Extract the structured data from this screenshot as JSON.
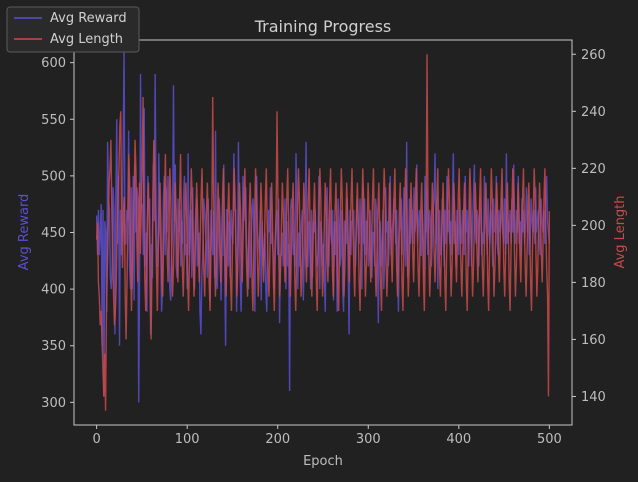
{
  "chart_data": {
    "type": "line",
    "title": "Training Progress",
    "xlabel": "Epoch",
    "x_ticks": [
      0,
      100,
      200,
      300,
      400,
      500
    ],
    "xlim": [
      -25,
      525
    ],
    "left_axis": {
      "label": "Avg Reward",
      "ticks": [
        300,
        350,
        400,
        450,
        500,
        550,
        600
      ],
      "ylim": [
        280,
        620
      ],
      "color": "#5a4fcf"
    },
    "right_axis": {
      "label": "Avg Length",
      "ticks": [
        140,
        160,
        180,
        200,
        220,
        240,
        260
      ],
      "ylim": [
        130,
        265
      ],
      "color": "#c94a4a"
    },
    "legend": {
      "placement": "top-left",
      "items": [
        {
          "label": "Avg Reward",
          "color": "#5a4fcf"
        },
        {
          "label": "Avg Length",
          "color": "#c94a4a"
        }
      ]
    },
    "grid": false,
    "series": [
      {
        "name": "Avg Reward",
        "axis": "left",
        "color": "#5a4fcf",
        "values": [
          465,
          430,
          470,
          430,
          450,
          475,
          350,
          470,
          305,
          460,
          450,
          380,
          530,
          480,
          470,
          410,
          400,
          420,
          490,
          470,
          360,
          480,
          550,
          440,
          500,
          350,
          470,
          430,
          450,
          530,
          612,
          440,
          440,
          470,
          460,
          540,
          420,
          400,
          490,
          400,
          500,
          390,
          510,
          450,
          490,
          480,
          300,
          420,
          590,
          470,
          475,
          430,
          560,
          420,
          450,
          380,
          500,
          470,
          480,
          360,
          440,
          410,
          510,
          460,
          590,
          470,
          420,
          420,
          520,
          460,
          440,
          380,
          400,
          480,
          500,
          430,
          490,
          450,
          500,
          470,
          400,
          390,
          430,
          450,
          580,
          460,
          510,
          420,
          410,
          480,
          450,
          470,
          420,
          460,
          440,
          480,
          500,
          430,
          440,
          400,
          520,
          430,
          460,
          470,
          410,
          490,
          430,
          400,
          460,
          480,
          420,
          430,
          450,
          380,
          360,
          410,
          430,
          480,
          470,
          450,
          440,
          410,
          480,
          440,
          390,
          470,
          450,
          430,
          470,
          410,
          540,
          420,
          400,
          450,
          480,
          460,
          390,
          430,
          430,
          510,
          420,
          350,
          470,
          470,
          420,
          460,
          410,
          470,
          450,
          440,
          520,
          470,
          470,
          380,
          420,
          530,
          460,
          410,
          380,
          430,
          500,
          460,
          480,
          490,
          440,
          420,
          400,
          460,
          410,
          440,
          470,
          480,
          450,
          380,
          470,
          500,
          450,
          440,
          430,
          470,
          390,
          460,
          420,
          430,
          450,
          400,
          380,
          440,
          470,
          450,
          490,
          440,
          450,
          430,
          400,
          440,
          460,
          470,
          430,
          480,
          370,
          430,
          430,
          450,
          420,
          440,
          480,
          400,
          460,
          420,
          440,
          310,
          470,
          480,
          470,
          430,
          440,
          420,
          520,
          470,
          400,
          450,
          420,
          440,
          460,
          470,
          390,
          430,
          460,
          530,
          420,
          420,
          460,
          440,
          400,
          470,
          410,
          460,
          450,
          470,
          430,
          420,
          430,
          500,
          400,
          460,
          450,
          420,
          440,
          410,
          380,
          460,
          490,
          440,
          420,
          470,
          450,
          440,
          470,
          390,
          460,
          430,
          460,
          380,
          480,
          450,
          420,
          430,
          470,
          400,
          380,
          460,
          460,
          440,
          480,
          420,
          360,
          470,
          430,
          460,
          460,
          470,
          430,
          420,
          450,
          480,
          460,
          440,
          480,
          450,
          400,
          490,
          440,
          480,
          430,
          460,
          460,
          420,
          430,
          470,
          440,
          410,
          450,
          450,
          420,
          480,
          470,
          430,
          370,
          450,
          460,
          420,
          440,
          470,
          400,
          430,
          490,
          450,
          460,
          420,
          440,
          500,
          430,
          450,
          460,
          480,
          470,
          440,
          470,
          420,
          380,
          450,
          460,
          480,
          430,
          460,
          490,
          450,
          420,
          530,
          410,
          430,
          480,
          440,
          460,
          470,
          440,
          490,
          450,
          460,
          510,
          440,
          460,
          470,
          430,
          430,
          470,
          440,
          410,
          500,
          450,
          490,
          430,
          450,
          470,
          460,
          420,
          440,
          470,
          480,
          520,
          440,
          480,
          400,
          450,
          470,
          430,
          440,
          480,
          460,
          420,
          470,
          440,
          500,
          450,
          470,
          440,
          460,
          430,
          480,
          520,
          440,
          460,
          420,
          470,
          450,
          430,
          480,
          450,
          440,
          470,
          460,
          430,
          500,
          450,
          470,
          440,
          420,
          480,
          450,
          420,
          460,
          480,
          510,
          450,
          440,
          470,
          460,
          420,
          480,
          470,
          430,
          450,
          440,
          500,
          470,
          460,
          430,
          480,
          450,
          440,
          470,
          460,
          420,
          480,
          450,
          460,
          500,
          440,
          430,
          470,
          450,
          460,
          480,
          450,
          440,
          480,
          430,
          520,
          440,
          460,
          450,
          470,
          440,
          480,
          450,
          510,
          460,
          440,
          470,
          450,
          500,
          440,
          460,
          430,
          480,
          450,
          470,
          440,
          460,
          490,
          450,
          470,
          430,
          440,
          480,
          460,
          450,
          470,
          440,
          490,
          450,
          460,
          470,
          440,
          430,
          480,
          460,
          450,
          470,
          440,
          480,
          500,
          460,
          450,
          440
        ],
        "note": ""
      },
      {
        "name": "Avg Length",
        "axis": "right",
        "color": "#c94a4a",
        "values": [
          195,
          201,
          180,
          175,
          165,
          170,
          160,
          150,
          140,
          155,
          135,
          170,
          185,
          200,
          215,
          220,
          230,
          205,
          190,
          175,
          165,
          170,
          180,
          200,
          210,
          220,
          235,
          240,
          200,
          185,
          205,
          210,
          175,
          160,
          180,
          200,
          225,
          215,
          190,
          170,
          185,
          200,
          210,
          230,
          220,
          195,
          180,
          200,
          215,
          190,
          205,
          220,
          245,
          200,
          180,
          170,
          190,
          205,
          215,
          200,
          175,
          160,
          185,
          210,
          230,
          220,
          200,
          185,
          170,
          190,
          205,
          215,
          200,
          180,
          175,
          195,
          210,
          225,
          205,
          190,
          180,
          200,
          220,
          210,
          190,
          175,
          185,
          200,
          215,
          205,
          190,
          180,
          195,
          210,
          225,
          200,
          185,
          175,
          190,
          205,
          215,
          200,
          180,
          170,
          190,
          205,
          220,
          210,
          190,
          175,
          185,
          200,
          215,
          205,
          190,
          180,
          195,
          210,
          220,
          200,
          185,
          175,
          190,
          205,
          215,
          200,
          180,
          170,
          190,
          205,
          245,
          210,
          190,
          175,
          185,
          200,
          215,
          205,
          190,
          180,
          195,
          210,
          220,
          200,
          185,
          175,
          190,
          205,
          215,
          200,
          180,
          170,
          190,
          205,
          220,
          210,
          190,
          175,
          185,
          200,
          215,
          205,
          190,
          180,
          195,
          210,
          220,
          200,
          185,
          175,
          190,
          205,
          215,
          200,
          180,
          170,
          190,
          205,
          220,
          210,
          190,
          175,
          185,
          200,
          215,
          205,
          190,
          180,
          195,
          210,
          220,
          200,
          185,
          175,
          190,
          205,
          215,
          200,
          180,
          170,
          190,
          205,
          240,
          210,
          190,
          175,
          185,
          200,
          215,
          205,
          190,
          180,
          195,
          210,
          220,
          200,
          185,
          175,
          190,
          205,
          215,
          200,
          180,
          170,
          190,
          205,
          220,
          210,
          190,
          175,
          185,
          200,
          215,
          205,
          190,
          180,
          195,
          210,
          220,
          200,
          185,
          175,
          190,
          205,
          215,
          200,
          180,
          170,
          190,
          205,
          220,
          210,
          190,
          175,
          185,
          200,
          215,
          205,
          190,
          180,
          195,
          210,
          220,
          200,
          185,
          175,
          190,
          205,
          215,
          200,
          180,
          170,
          190,
          205,
          220,
          210,
          190,
          175,
          185,
          200,
          215,
          205,
          190,
          180,
          195,
          210,
          220,
          200,
          185,
          175,
          190,
          205,
          215,
          200,
          180,
          170,
          190,
          205,
          220,
          210,
          190,
          175,
          185,
          200,
          215,
          205,
          190,
          180,
          195,
          210,
          220,
          200,
          185,
          175,
          190,
          205,
          215,
          200,
          180,
          170,
          190,
          205,
          220,
          210,
          190,
          175,
          185,
          200,
          215,
          205,
          190,
          180,
          195,
          210,
          220,
          200,
          185,
          175,
          190,
          205,
          215,
          200,
          180,
          170,
          190,
          205,
          220,
          210,
          190,
          175,
          185,
          200,
          215,
          205,
          190,
          180,
          195,
          210,
          220,
          200,
          185,
          175,
          190,
          205,
          215,
          200,
          180,
          170,
          190,
          205,
          260,
          210,
          190,
          175,
          185,
          200,
          215,
          205,
          190,
          180,
          195,
          210,
          220,
          200,
          185,
          175,
          190,
          205,
          215,
          200,
          180,
          170,
          190,
          205,
          220,
          210,
          190,
          175,
          185,
          200,
          215,
          205,
          190,
          180,
          195,
          210,
          220,
          200,
          185,
          175,
          190,
          205,
          215,
          200,
          180,
          170,
          190,
          205,
          220,
          210,
          190,
          175,
          185,
          200,
          215,
          205,
          190,
          180,
          195,
          210,
          220,
          200,
          185,
          175,
          190,
          205,
          215,
          200,
          180,
          170,
          190,
          205,
          220,
          210,
          190,
          175,
          185,
          200,
          215,
          205,
          190,
          180,
          195,
          210,
          220,
          200,
          185,
          175,
          190,
          205,
          215,
          200,
          180,
          170,
          190,
          205,
          220,
          210,
          190,
          175,
          185,
          200,
          215,
          205,
          190,
          180,
          195,
          210,
          220,
          200,
          185,
          175,
          190,
          205,
          215,
          200,
          180,
          170,
          190,
          205,
          220,
          210,
          190,
          175,
          185,
          200,
          215,
          205,
          190,
          180,
          195,
          210,
          220,
          200,
          185,
          175,
          140,
          205
        ],
        "note": ""
      }
    ]
  }
}
